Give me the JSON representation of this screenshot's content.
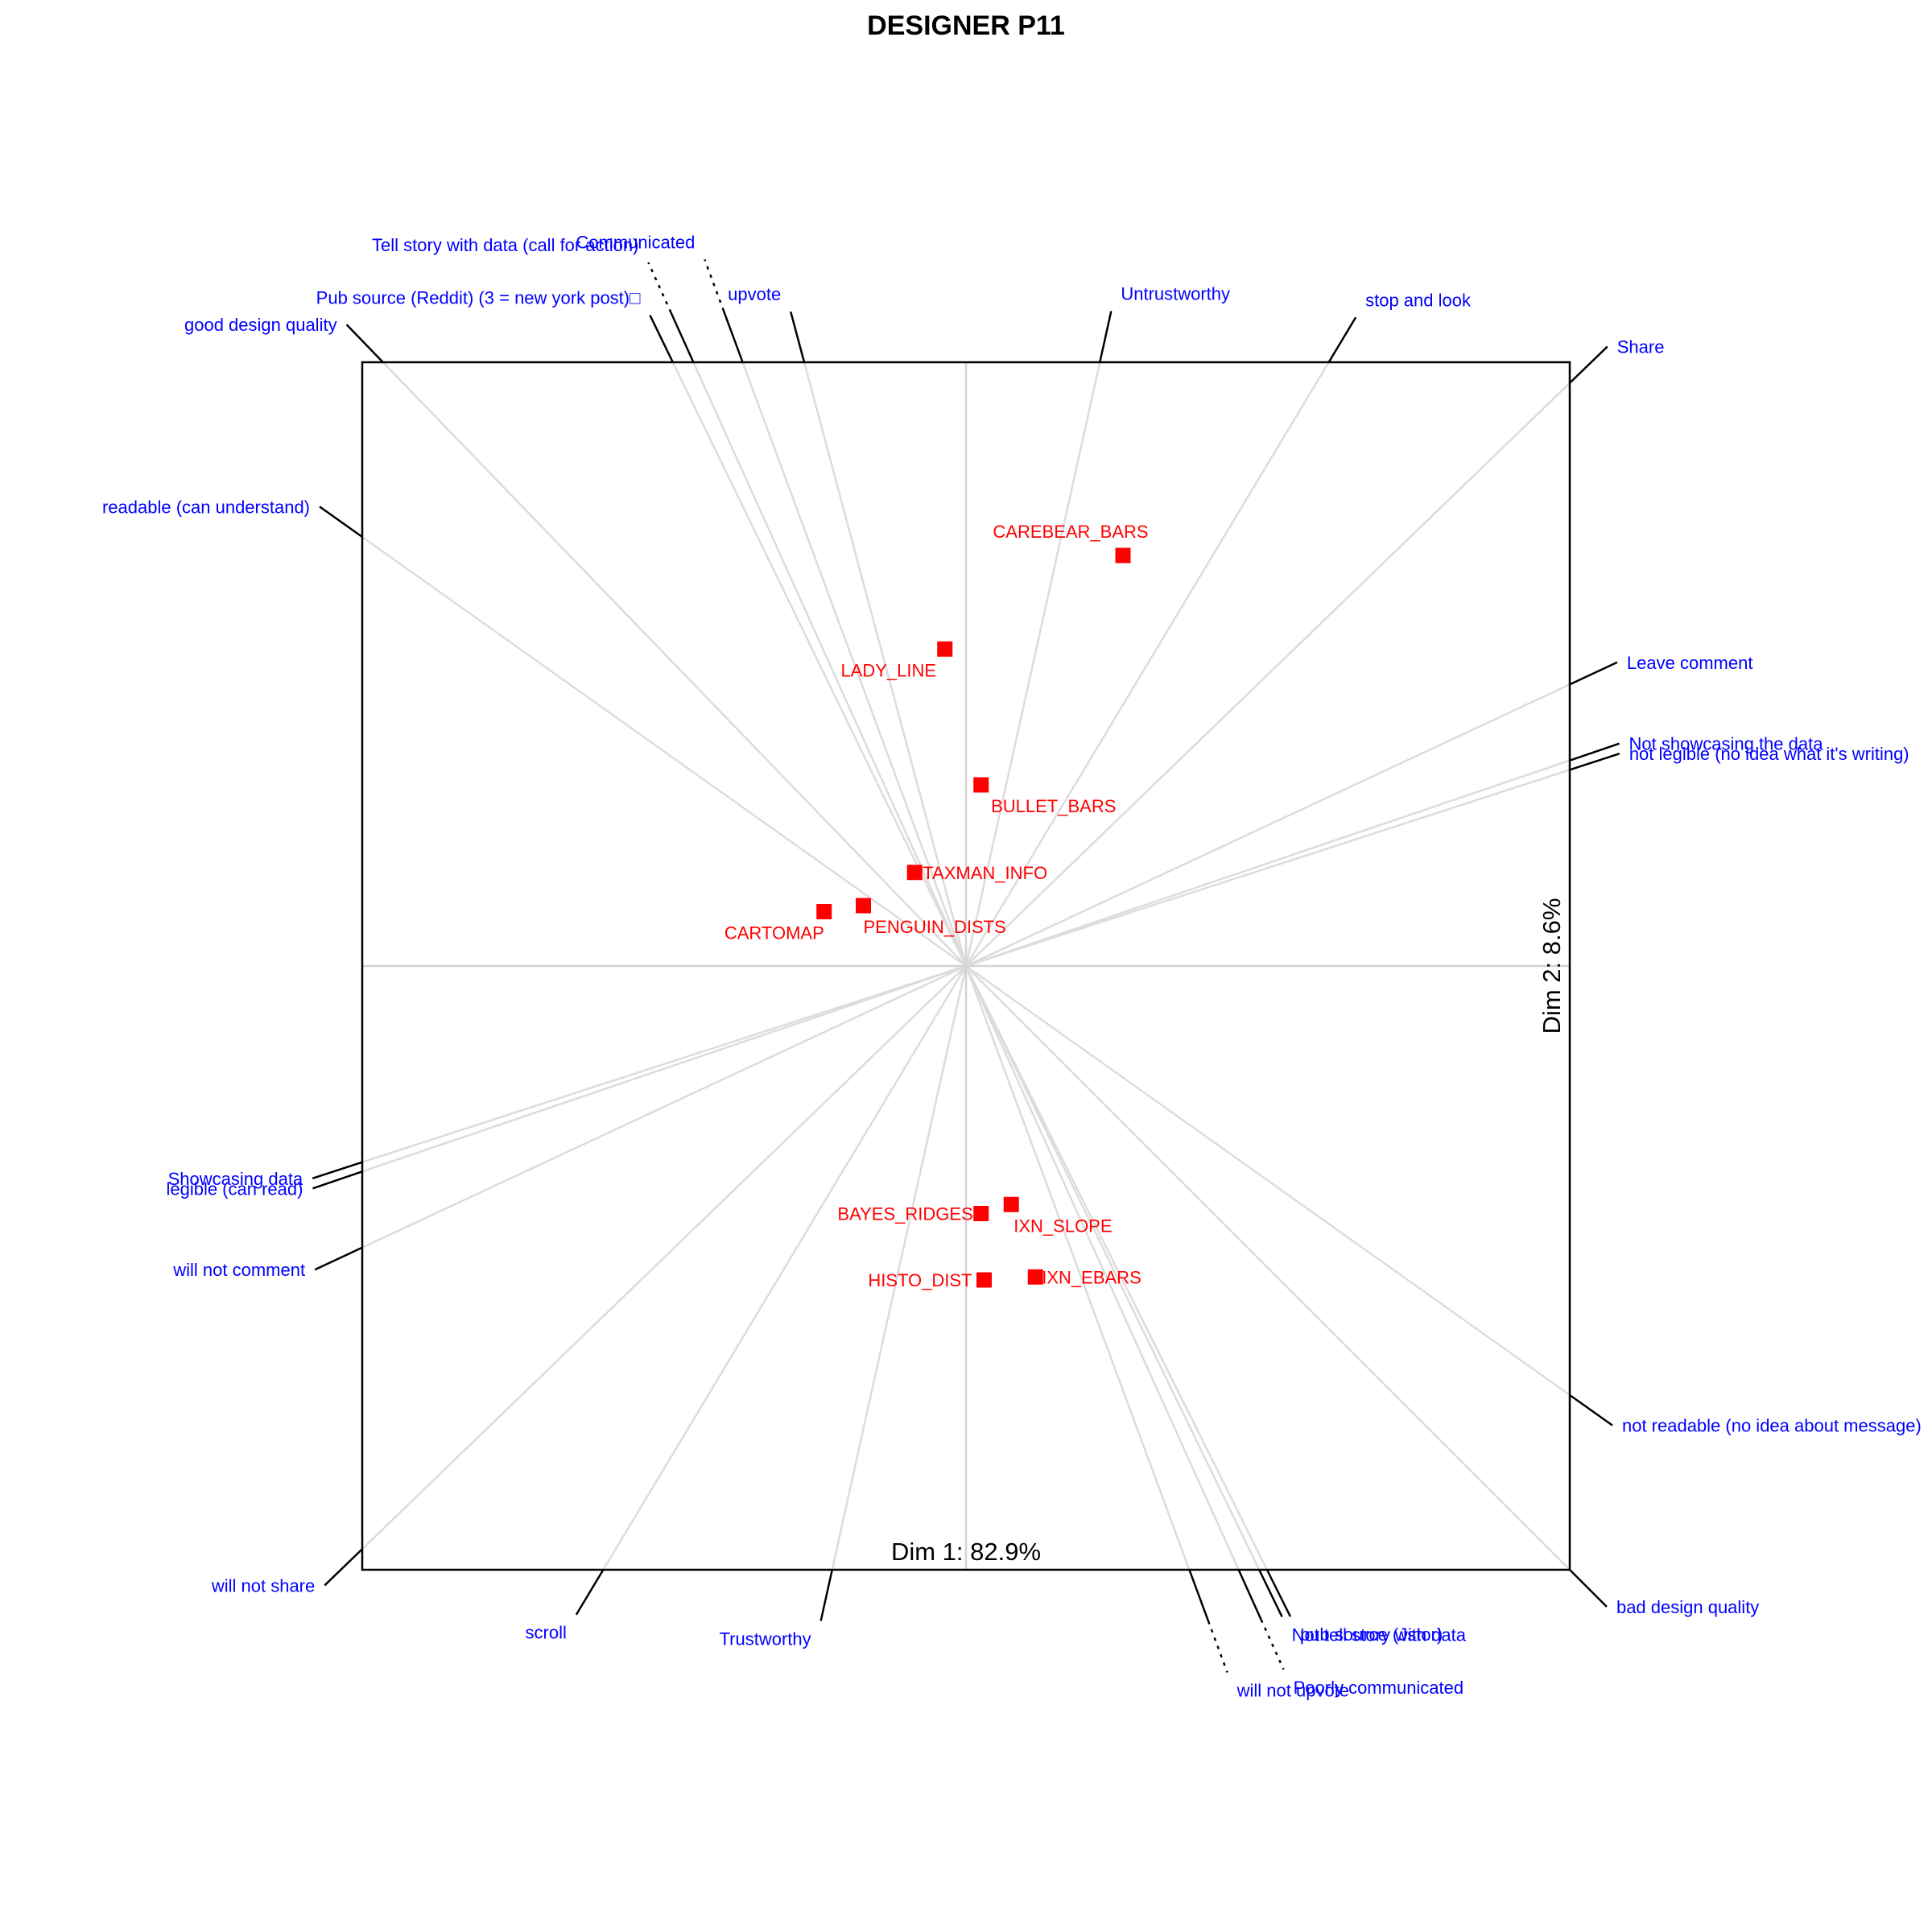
{
  "chart_data": {
    "type": "scatter",
    "title": "DESIGNER P11",
    "xlabel": "Dim 1: 82.9%",
    "ylabel": "Dim 2: 8.6%",
    "xlim": [
      -1,
      1
    ],
    "ylim": [
      -1,
      1
    ],
    "grid": false,
    "point_color": "#ff0000",
    "label_color": "#0000ff",
    "elements": [
      {
        "name": "CAREBEAR_BARS",
        "x": 0.26,
        "y": 0.68
      },
      {
        "name": "LADY_LINE",
        "x": -0.035,
        "y": 0.525
      },
      {
        "name": "BULLET_BARS",
        "x": 0.025,
        "y": 0.3
      },
      {
        "name": "TAXMAN_INFO",
        "x": -0.085,
        "y": 0.155
      },
      {
        "name": "PENGUIN_DISTS",
        "x": -0.17,
        "y": 0.1
      },
      {
        "name": "CARTOMAP",
        "x": -0.235,
        "y": 0.09
      },
      {
        "name": "BAYES_RIDGES",
        "x": 0.025,
        "y": -0.41
      },
      {
        "name": "IXN_SLOPE",
        "x": 0.075,
        "y": -0.395
      },
      {
        "name": "IXN_EBARS",
        "x": 0.115,
        "y": -0.515
      },
      {
        "name": "HISTO_DIST",
        "x": 0.03,
        "y": -0.52
      }
    ],
    "poles": [
      {
        "label": "Communicated",
        "angle": 110.3,
        "dotted": true
      },
      {
        "label": "Tell story with data (call for action)",
        "angle": 114.3,
        "dotted": true
      },
      {
        "label": "Pub source (Reddit) (3 = new york post)□",
        "angle": 115.9,
        "dotted": false
      },
      {
        "label": "upvote",
        "angle": 105.0,
        "dotted": false
      },
      {
        "label": "Untrustworthy",
        "angle": 77.5,
        "dotted": false
      },
      {
        "label": "stop and look",
        "angle": 59.0,
        "dotted": false
      },
      {
        "label": "good design quality",
        "angle": 134.0,
        "dotted": false
      },
      {
        "label": "readable (can understand)",
        "angle": 144.6,
        "dotted": false
      },
      {
        "label": "Share",
        "angle": 44.0,
        "dotted": false
      },
      {
        "label": "Leave comment",
        "angle": 25.0,
        "dotted": false
      },
      {
        "label": "Not showcasing the data",
        "angle": 18.8,
        "dotted": false
      },
      {
        "label": "not legible (no idea what it's writing)",
        "angle": 18.0,
        "dotted": false
      },
      {
        "label": "legible (can read)",
        "angle": 198.8,
        "dotted": false
      },
      {
        "label": "Showcasing data",
        "angle": 198.0,
        "dotted": false
      },
      {
        "label": "will not comment",
        "angle": 205.0,
        "dotted": false
      },
      {
        "label": "will not share",
        "angle": 224.0,
        "dotted": false
      },
      {
        "label": "scroll",
        "angle": 239.0,
        "dotted": false
      },
      {
        "label": "Trustworthy",
        "angle": 257.5,
        "dotted": false
      },
      {
        "label": "will not upvote",
        "angle": 290.3,
        "dotted": true
      },
      {
        "label": "Poorly communicated",
        "angle": 294.3,
        "dotted": true
      },
      {
        "label": "Not tell story with data",
        "angle": 295.9,
        "dotted": false
      },
      {
        "label": "pub source (Jstor)",
        "angle": 296.5,
        "dotted": false
      },
      {
        "label": "not readable (no idea about message)",
        "angle": 324.6,
        "dotted": false
      },
      {
        "label": "bad design quality",
        "angle": 315.0,
        "dotted": false
      }
    ]
  }
}
